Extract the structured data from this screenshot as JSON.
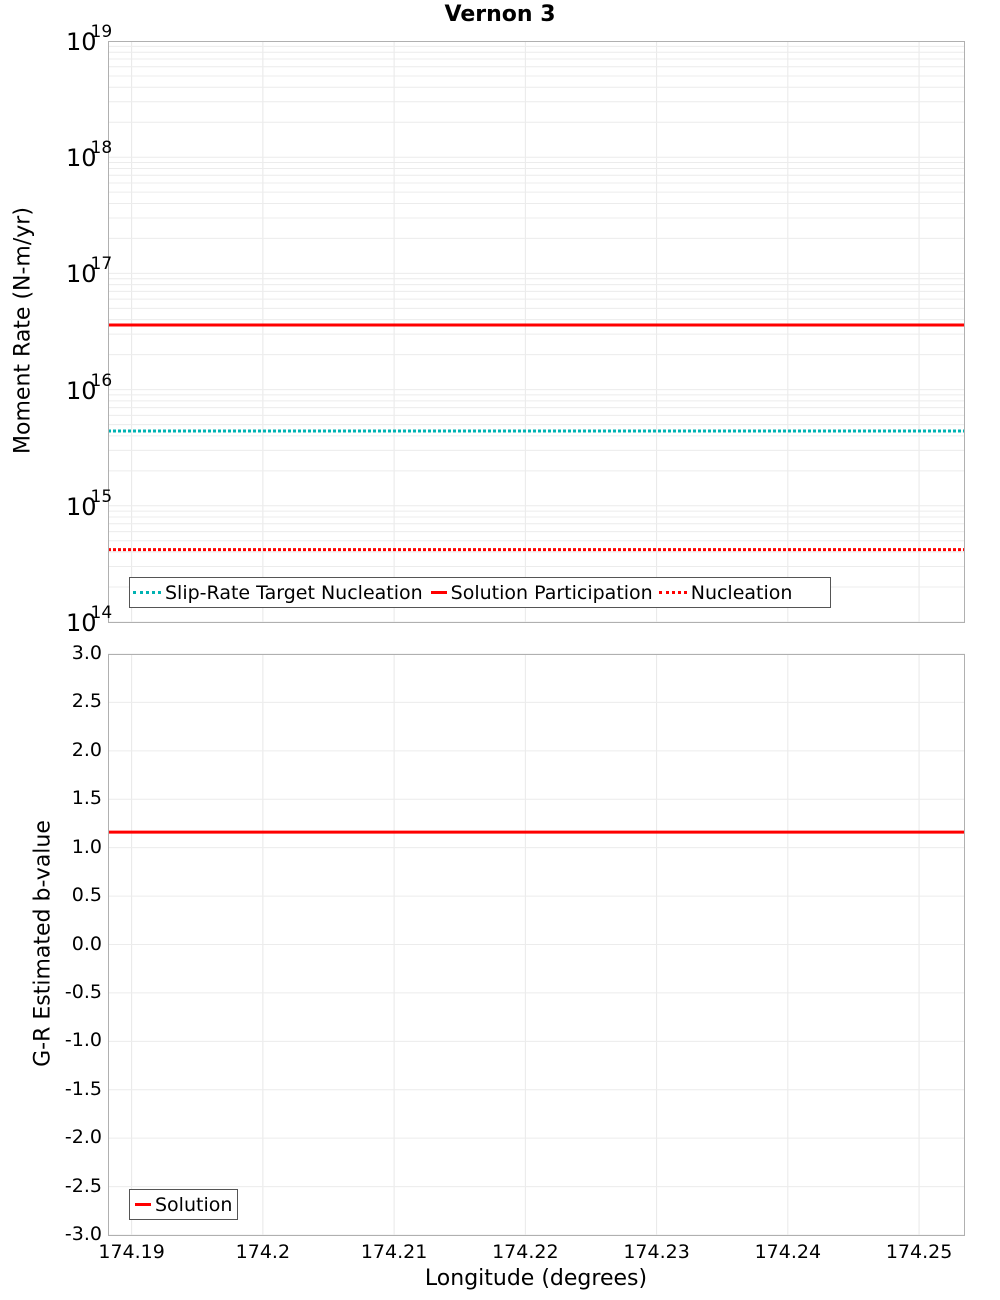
{
  "figure": {
    "title": "Vernon 3"
  },
  "top_panel": {
    "ylabel": "Moment Rate (N-m/yr)",
    "decade_labels": [
      {
        "base": "10",
        "exp": "19"
      },
      {
        "base": "10",
        "exp": "18"
      },
      {
        "base": "10",
        "exp": "17"
      },
      {
        "base": "10",
        "exp": "16"
      },
      {
        "base": "10",
        "exp": "15"
      },
      {
        "base": "10",
        "exp": "14"
      }
    ],
    "legend": [
      {
        "label": "Slip-Rate Target Nucleation",
        "style": "dotted",
        "color": "#00b2b2"
      },
      {
        "label": "Solution Participation",
        "style": "solid",
        "color": "#ff0000"
      },
      {
        "label": "Nucleation",
        "style": "dotted",
        "color": "#ff0000"
      }
    ]
  },
  "bottom_panel": {
    "ylabel": "G-R Estimated b-value",
    "yticks": [
      "3.0",
      "2.5",
      "2.0",
      "1.5",
      "1.0",
      "0.5",
      "0.0",
      "-0.5",
      "-1.0",
      "-1.5",
      "-2.0",
      "-2.5",
      "-3.0"
    ],
    "legend": [
      {
        "label": "Solution",
        "style": "solid",
        "color": "#ff0000"
      }
    ]
  },
  "x_axis": {
    "xlabel": "Longitude (degrees)",
    "xticks": [
      "174.19",
      "174.2",
      "174.21",
      "174.22",
      "174.23",
      "174.24",
      "174.25"
    ]
  },
  "chart_data": [
    {
      "type": "line",
      "title": "Vernon 3",
      "xlabel": "Longitude (degrees)",
      "ylabel": "Moment Rate (N-m/yr)",
      "yscale": "log",
      "ylim": [
        100000000000000.0,
        1e+19
      ],
      "xlim": [
        174.1882,
        174.2535
      ],
      "grid": true,
      "legend_position": "lower left",
      "x": [
        174.1882,
        174.2208,
        174.2535
      ],
      "series": [
        {
          "name": "Slip-Rate Target Nucleation",
          "style": "dotted",
          "color": "#00b2b2",
          "values": [
            4400000000000000.0,
            4400000000000000.0,
            4400000000000000.0
          ]
        },
        {
          "name": "Solution Participation",
          "style": "solid",
          "color": "#ff0000",
          "values": [
            3.6e+16,
            3.6e+16,
            3.6e+16
          ]
        },
        {
          "name": "Nucleation",
          "style": "dotted",
          "color": "#ff0000",
          "values": [
            420000000000000.0,
            420000000000000.0,
            420000000000000.0
          ]
        }
      ]
    },
    {
      "type": "line",
      "title": "",
      "xlabel": "Longitude (degrees)",
      "ylabel": "G-R Estimated b-value",
      "ylim": [
        -3.0,
        3.0
      ],
      "xlim": [
        174.1882,
        174.2535
      ],
      "xticks": [
        174.19,
        174.2,
        174.21,
        174.22,
        174.23,
        174.24,
        174.25
      ],
      "yticks": [
        -3.0,
        -2.5,
        -2.0,
        -1.5,
        -1.0,
        -0.5,
        0.0,
        0.5,
        1.0,
        1.5,
        2.0,
        2.5,
        3.0
      ],
      "grid": true,
      "legend_position": "lower left",
      "x": [
        174.1882,
        174.2208,
        174.2535
      ],
      "series": [
        {
          "name": "Solution",
          "style": "solid",
          "color": "#ff0000",
          "values": [
            1.16,
            1.16,
            1.16
          ]
        }
      ]
    }
  ]
}
